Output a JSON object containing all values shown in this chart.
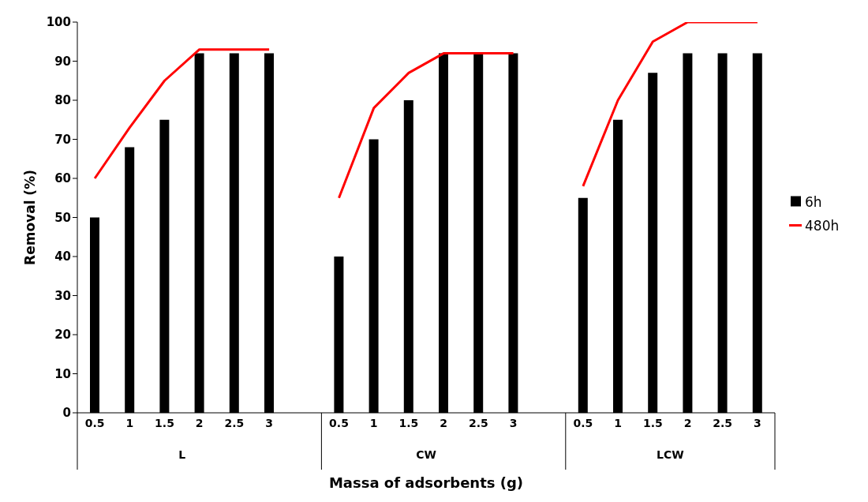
{
  "chart_data": {
    "type": "bar",
    "xlabel": "Massa of adsorbents (g)",
    "ylabel": "Removal (%)",
    "categories": [
      "0.5",
      "1",
      "1.5",
      "2",
      "2.5",
      "3",
      null,
      "0.5",
      "1",
      "1.5",
      "2",
      "2.5",
      "3",
      null,
      "0.5",
      "1",
      "1.5",
      "2",
      "2.5",
      "3"
    ],
    "annotations": [
      "L",
      "CW",
      "LCW"
    ],
    "series": [
      {
        "name": "6h",
        "color": "#000000",
        "values": [
          50,
          68,
          75,
          92,
          92,
          92,
          null,
          40,
          70,
          80,
          92,
          92,
          92,
          null,
          55,
          75,
          87,
          92,
          92,
          92
        ]
      },
      {
        "name": "480h",
        "type": "line",
        "color": "#ff0000",
        "values": [
          60,
          73,
          85,
          93,
          93,
          93,
          null,
          55,
          78,
          87,
          92,
          92,
          92,
          null,
          58,
          80,
          95,
          100,
          100,
          100
        ]
      }
    ],
    "ylim": [
      0,
      100
    ],
    "yticks": [
      0,
      10,
      20,
      30,
      40,
      50,
      60,
      70,
      80,
      90,
      100
    ],
    "grid": false,
    "legend": "right",
    "marker": "none",
    "line_style": "solid"
  }
}
